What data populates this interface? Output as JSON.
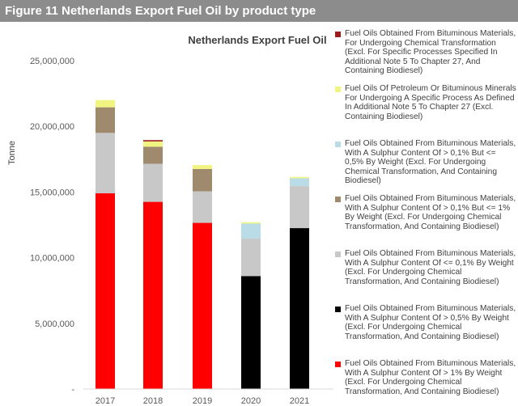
{
  "header": {
    "title": "Figure 11 Netherlands Export Fuel Oil by product type"
  },
  "chart_data": {
    "type": "bar",
    "stacked": true,
    "title": "Netherlands Export Fuel Oil",
    "xlabel": "",
    "ylabel": "Tonne",
    "ylim": [
      0,
      25000000
    ],
    "yticks": [
      "-",
      "5,000,000",
      "10,000,000",
      "15,000,000",
      "20,000,000",
      "25,000,000"
    ],
    "grid": false,
    "legend_position": "right",
    "categories": [
      "2017",
      "2018",
      "2019",
      "2020",
      "2021"
    ],
    "series": [
      {
        "name": "Fuel Oils Obtained From Bituminous Materials, With A Sulphur Content Of > 1% By Weight (Excl. For Undergoing Chemical Transformation, And Containing Biodiesel)",
        "color": "#ff0000",
        "values": [
          14900000,
          14250000,
          12650000,
          0,
          0
        ]
      },
      {
        "name": "Fuel Oils Obtained From Bituminous Materials, With A Sulphur Content Of > 0,5% By Weight (Excl. For Undergoing Chemical Transformation, And Containing Biodiesel)",
        "color": "#000000",
        "values": [
          0,
          0,
          0,
          8600000,
          12250000
        ]
      },
      {
        "name": "Fuel Oils Obtained From Bituminous Materials, With A Sulphur Content Of <= 0,1% By Weight (Excl. For Undergoing Chemical Transformation, And Containing Biodiesel)",
        "color": "#c8c8c8",
        "values": [
          4600000,
          2900000,
          2400000,
          2850000,
          3200000
        ]
      },
      {
        "name": "Fuel Oils Obtained From Bituminous Materials, With A Sulphur Content Of > 0,1% But <= 1% By Weight (Excl. For Undergoing Chemical Transformation, And Containing Biodiesel)",
        "color": "#a08a6e",
        "values": [
          1950000,
          1300000,
          1700000,
          0,
          0
        ]
      },
      {
        "name": "Fuel Oils Obtained From Bituminous Materials, With A Sulphur Content Of > 0,1% But <= 0,5% By Weight (Excl. For Undergoing Chemical Transformation, And Containing Biodiesel)",
        "color": "#b9dce6",
        "values": [
          0,
          0,
          0,
          1150000,
          600000
        ]
      },
      {
        "name": "Fuel Oils Of Petroleum Or Bituminous Minerals For Undergoing A Specific Process As Defined In Additional Note 5 To Chapter 27 (Excl. Containing Biodiesel)",
        "color": "#f0f582",
        "values": [
          550000,
          400000,
          300000,
          100000,
          100000
        ]
      },
      {
        "name": "Fuel Oils Obtained From Bituminous Materials, For Undergoing Chemical Transformation (Excl. For Specific Processes Specified In Additional Note 5 To Chapter 27, And Containing Biodiesel)",
        "color": "#9c1c1c",
        "values": [
          0,
          100000,
          0,
          0,
          0
        ]
      }
    ],
    "legend_order": [
      6,
      5,
      4,
      3,
      2,
      1,
      0
    ]
  }
}
